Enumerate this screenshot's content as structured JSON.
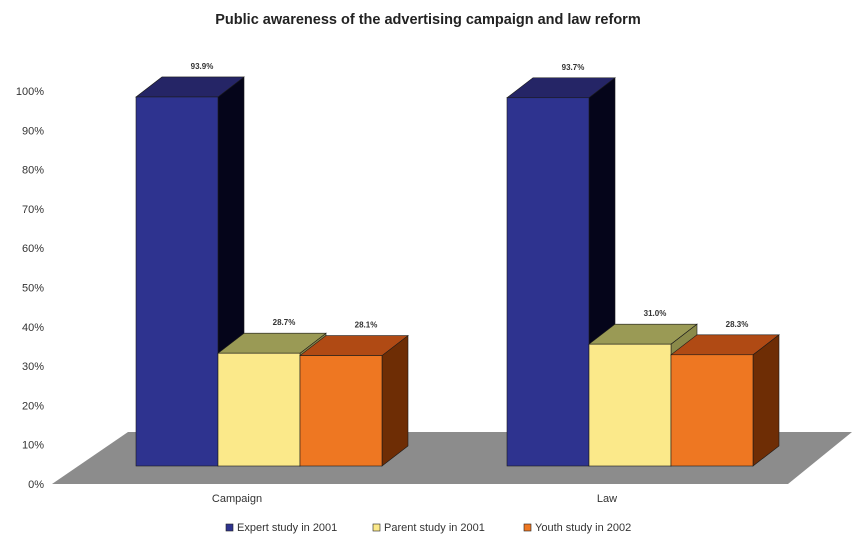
{
  "chart_data": {
    "type": "bar",
    "title": "Public awareness of the advertising campaign and law reform",
    "categories": [
      "Campaign",
      "Law"
    ],
    "series": [
      {
        "name": "Expert study in 2001",
        "values": [
          93.9,
          93.7
        ],
        "labels": [
          "93.9%",
          "93.7%"
        ],
        "color": "#2e338f",
        "side_color": "#05051a",
        "top_color": "#252566"
      },
      {
        "name": "Parent study in 2001",
        "values": [
          28.7,
          31.0
        ],
        "labels": [
          "28.7%",
          "31.0%"
        ],
        "color": "#fbe98a",
        "side_color": "#8a8a4a",
        "top_color": "#9a9a55"
      },
      {
        "name": "Youth study in 2002",
        "values": [
          28.1,
          28.3
        ],
        "labels": [
          "28.1%",
          "28.3%"
        ],
        "color": "#ee7722",
        "side_color": "#6e2d05",
        "top_color": "#b04a14"
      }
    ],
    "yticks": [
      "0%",
      "10%",
      "20%",
      "30%",
      "40%",
      "50%",
      "60%",
      "70%",
      "80%",
      "90%",
      "100%"
    ],
    "ylim": [
      0,
      100
    ],
    "xlabel": "",
    "ylabel": "",
    "legend_position": "bottom",
    "floor_color": "#8c8c8c",
    "grid": false
  }
}
